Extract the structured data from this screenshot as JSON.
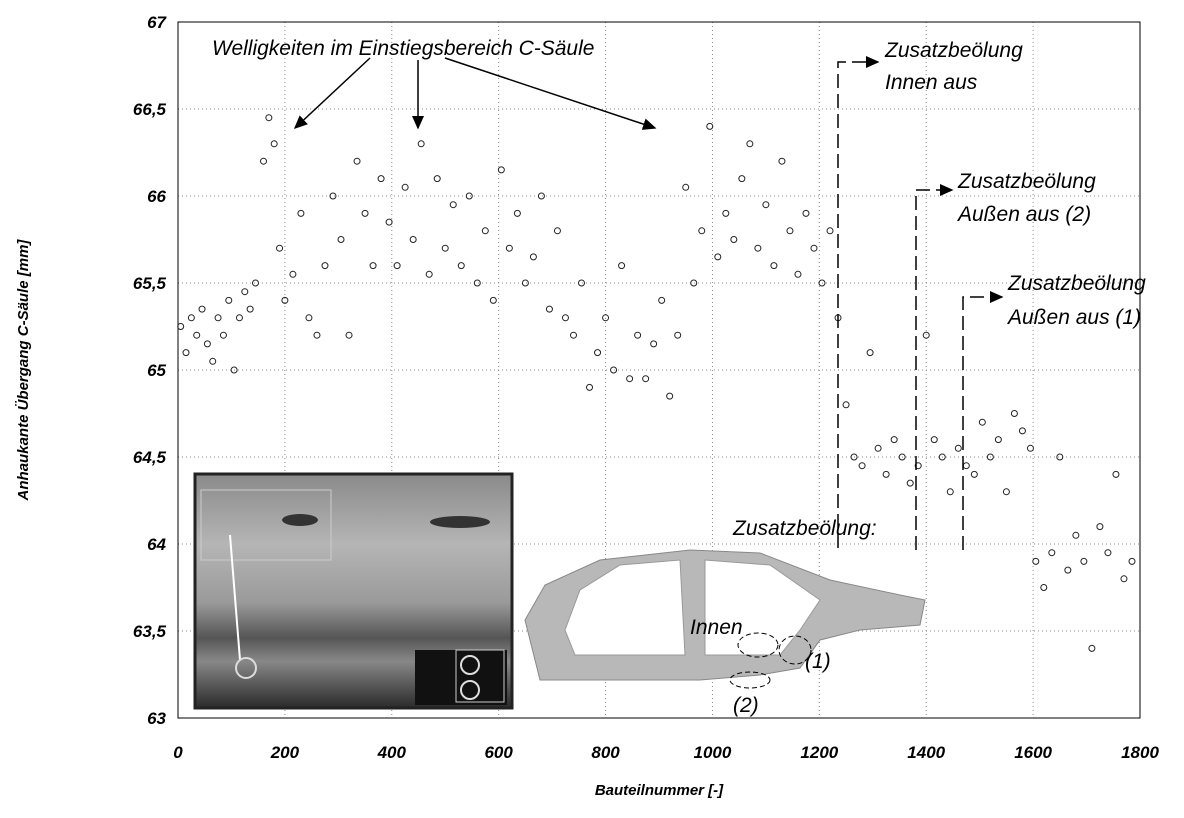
{
  "chart_data": {
    "type": "scatter",
    "x_label": "Bauteilnummer [-]",
    "y_label": "Anhaukante Übergang C-Säule [mm]",
    "x": [
      5,
      15,
      25,
      35,
      45,
      55,
      65,
      75,
      85,
      95,
      105,
      115,
      125,
      135,
      145,
      160,
      170,
      180,
      190,
      200,
      215,
      230,
      245,
      260,
      275,
      290,
      305,
      320,
      335,
      350,
      365,
      380,
      395,
      410,
      425,
      440,
      455,
      470,
      485,
      500,
      515,
      530,
      545,
      560,
      575,
      590,
      605,
      620,
      635,
      650,
      665,
      680,
      695,
      710,
      725,
      740,
      755,
      770,
      785,
      800,
      815,
      830,
      845,
      860,
      875,
      890,
      905,
      920,
      935,
      950,
      965,
      980,
      995,
      1010,
      1025,
      1040,
      1055,
      1070,
      1085,
      1100,
      1115,
      1130,
      1145,
      1160,
      1175,
      1190,
      1205,
      1220,
      1235,
      1250,
      1265,
      1280,
      1295,
      1310,
      1325,
      1340,
      1355,
      1370,
      1385,
      1400,
      1415,
      1430,
      1445,
      1460,
      1475,
      1490,
      1505,
      1520,
      1535,
      1550,
      1565,
      1580,
      1595,
      1605,
      1620,
      1635,
      1650,
      1665,
      1680,
      1695,
      1710,
      1725,
      1740,
      1755,
      1770,
      1785
    ],
    "values": [
      65.25,
      65.1,
      65.3,
      65.2,
      65.35,
      65.15,
      65.05,
      65.3,
      65.2,
      65.4,
      65.0,
      65.3,
      65.45,
      65.35,
      65.5,
      66.2,
      66.45,
      66.3,
      65.7,
      65.4,
      65.55,
      65.9,
      65.3,
      65.2,
      65.6,
      66.0,
      65.75,
      65.2,
      66.2,
      65.9,
      65.6,
      66.1,
      65.85,
      65.6,
      66.05,
      65.75,
      66.3,
      65.55,
      66.1,
      65.7,
      65.95,
      65.6,
      66.0,
      65.5,
      65.8,
      65.4,
      66.15,
      65.7,
      65.9,
      65.5,
      65.65,
      66.0,
      65.35,
      65.8,
      65.3,
      65.2,
      65.5,
      64.9,
      65.1,
      65.3,
      65.0,
      65.6,
      64.95,
      65.2,
      64.95,
      65.15,
      65.4,
      64.85,
      65.2,
      66.05,
      65.5,
      65.8,
      66.4,
      65.65,
      65.9,
      65.75,
      66.1,
      66.3,
      65.7,
      65.95,
      65.6,
      66.2,
      65.8,
      65.55,
      65.9,
      65.7,
      65.5,
      65.8,
      65.3,
      64.8,
      64.5,
      64.45,
      65.1,
      64.55,
      64.4,
      64.6,
      64.5,
      64.35,
      64.45,
      65.2,
      64.6,
      64.5,
      64.3,
      64.55,
      64.45,
      64.4,
      64.7,
      64.5,
      64.6,
      64.3,
      64.75,
      64.65,
      64.55,
      63.9,
      63.75,
      63.95,
      64.5,
      63.85,
      64.05,
      63.9,
      63.4,
      64.1,
      63.95,
      64.4,
      63.8,
      63.9
    ],
    "xlim": [
      0,
      1800
    ],
    "xticks": [
      0,
      200,
      400,
      600,
      800,
      1000,
      1200,
      1400,
      1600,
      1800
    ],
    "ylim": [
      63,
      67
    ],
    "yticks": [
      63,
      {
        "value": 63.5,
        "label": "63,5"
      },
      64,
      {
        "value": 64.5,
        "label": "64,5"
      },
      65,
      {
        "value": 65.5,
        "label": "65,5"
      },
      66,
      {
        "value": 66.5,
        "label": "66,5"
      },
      67
    ],
    "grid": true,
    "color": "#222222",
    "annotations": [
      "Welligkeiten im Einstiegsbereich C-Säule",
      "Zusatzbeölung",
      "Innen aus",
      "Zusatzbeölung",
      "Außen aus (2)",
      "Zusatzbeölung",
      "Außen aus (1)",
      "Zusatzbeölung:",
      "Innen",
      "(1)",
      "(2)"
    ]
  }
}
